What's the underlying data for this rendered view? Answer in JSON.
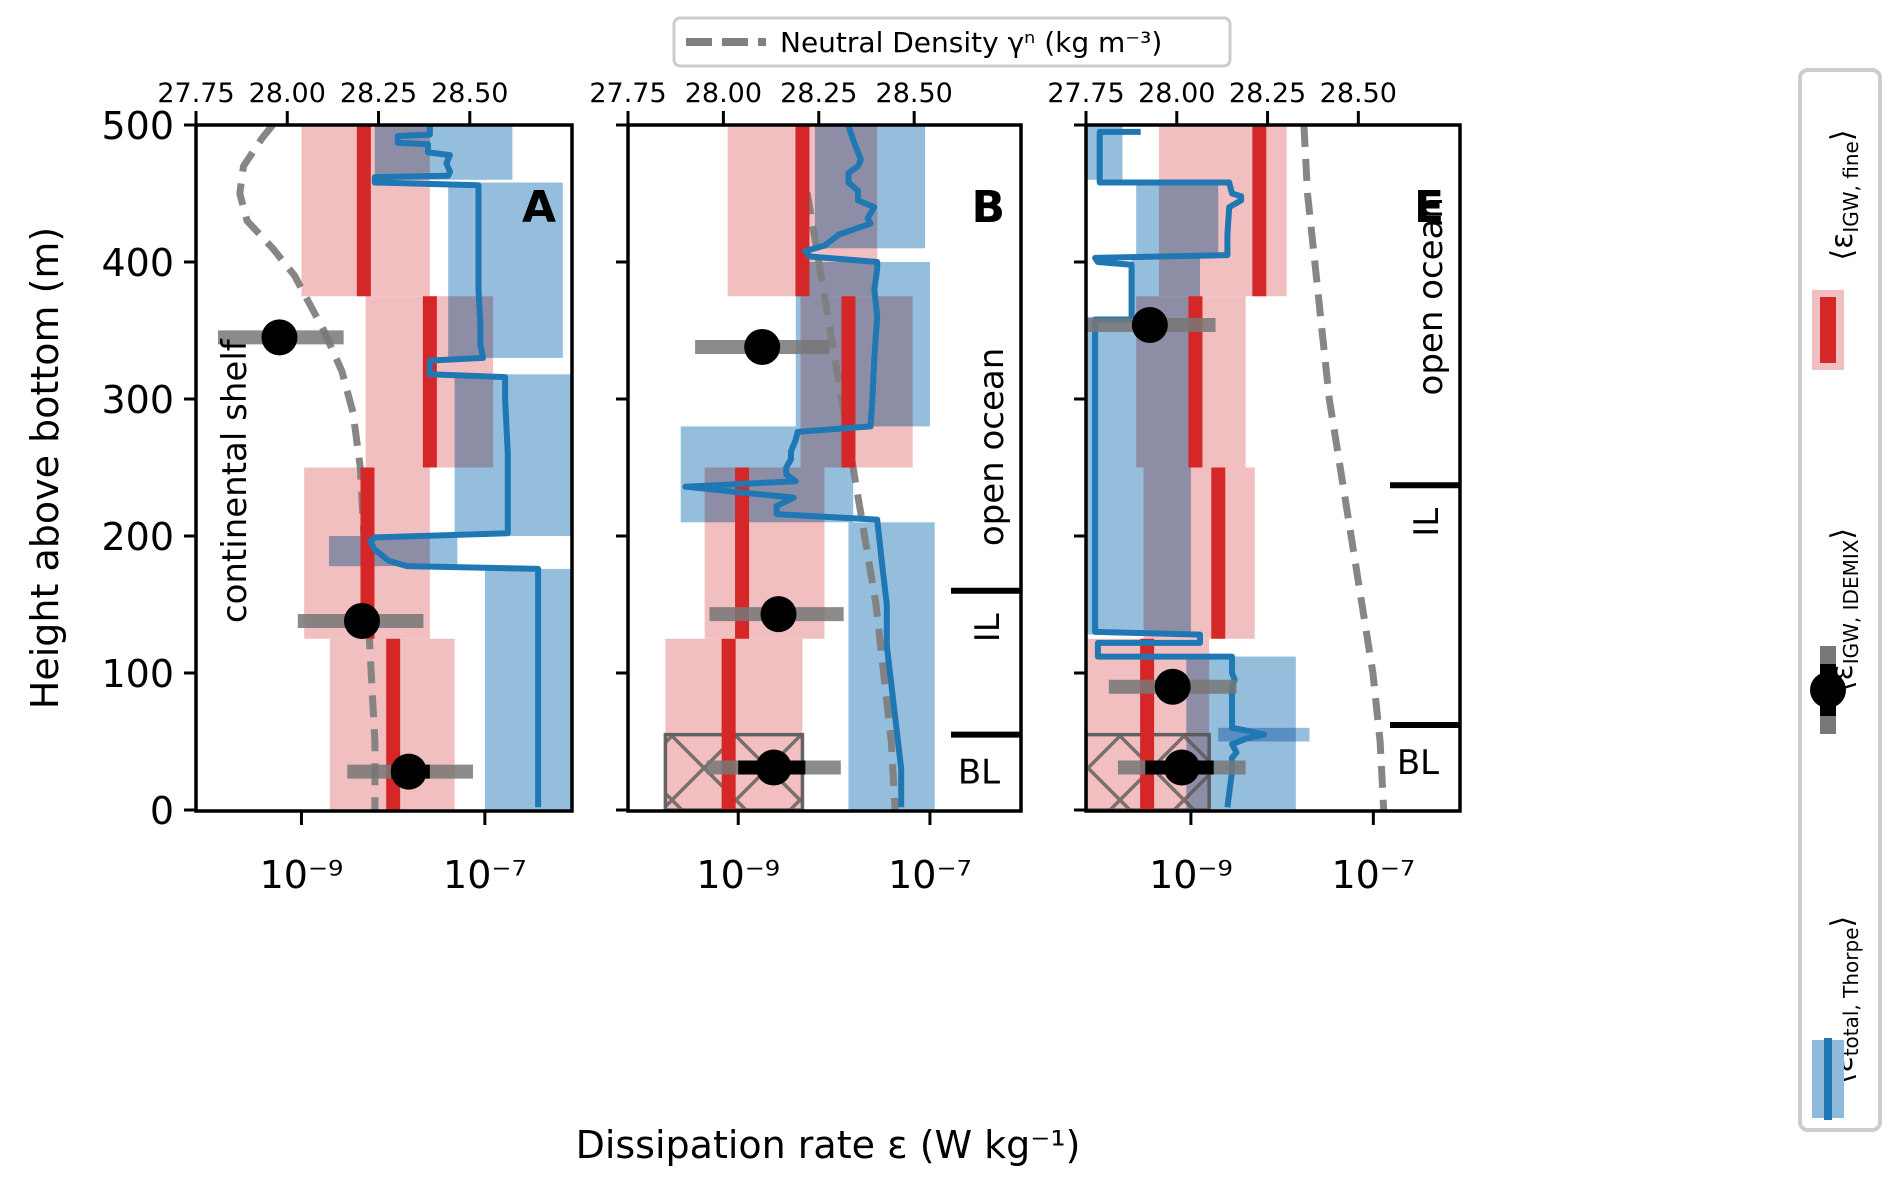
{
  "chart_data": {
    "type": "line",
    "title": "",
    "xlabel": "Dissipation rate ε (W kg⁻¹)",
    "ylabel": "Height above bottom (m)",
    "top_xlabel": "Neutral Density γⁿ (kg m⁻³)",
    "x_scale": "log",
    "xlim_log10": [
      -10.15,
      -6.05
    ],
    "ylim": [
      0,
      500
    ],
    "yticks": [
      0,
      100,
      200,
      300,
      400,
      500
    ],
    "ytick_labels": [
      "0",
      "100",
      "200",
      "300",
      "400",
      "500"
    ],
    "xticks_log10": [
      -9,
      -7
    ],
    "xtick_labels": [
      "10⁻⁹",
      "10⁻⁷"
    ],
    "top_xlim": [
      27.75,
      28.78
    ],
    "top_xticks": [
      27.75,
      28.0,
      28.25,
      28.5
    ],
    "top_xtick_labels": [
      "27.75",
      "28.00",
      "28.25",
      "28.50"
    ],
    "grid": false,
    "legend": {
      "top": {
        "label": "Neutral Density γⁿ (kg m⁻³)",
        "placement": "top-center"
      },
      "right": {
        "placement": "right",
        "entries": [
          {
            "label": "⟨εIGW, fine⟩",
            "main": "⟨ε",
            "sub": "IGW, fine",
            "close": "⟩",
            "kind": "red-bar"
          },
          {
            "label": "⟨εIGW, IDEMIX⟩",
            "main": "⟨ε",
            "sub": "IGW, IDEMIX",
            "close": "⟩",
            "kind": "black-dot"
          },
          {
            "label": "⟨εtotal, Thorpe⟩",
            "main": "⟨ε",
            "sub": "total, Thorpe",
            "close": "⟩",
            "kind": "blue-line"
          }
        ]
      }
    },
    "colors": {
      "fine_bar": "#d62728",
      "fine_shade": "#f2bfc0",
      "overlap_shade": "#a58ca0",
      "thorpe_line": "#1f77b4",
      "thorpe_shade": "#8fbbdb",
      "idemix_dot": "#000000",
      "idemix_err": "#777777",
      "density": "#808080"
    },
    "panels": [
      {
        "letter": "A",
        "region_label": "continental shelf",
        "layers": [],
        "fine_segments": [
          {
            "z": [
              375,
              500
            ],
            "value": -8.32,
            "lo": -9.0,
            "hi": -7.6
          },
          {
            "z": [
              250,
              375
            ],
            "value": -7.6,
            "lo": -8.3,
            "hi": -6.91
          },
          {
            "z": [
              125,
              250
            ],
            "value": -8.28,
            "lo": -8.97,
            "hi": -7.6
          },
          {
            "z": [
              0,
              125
            ],
            "value": -8.0,
            "lo": -8.69,
            "hi": -7.33
          }
        ],
        "idemix": [
          {
            "z": 345,
            "value": -9.24,
            "lo": -9.91,
            "hi": -8.54,
            "ilo": -9.4,
            "ihi": -9.1
          },
          {
            "z": 138,
            "value": -8.34,
            "lo": -9.04,
            "hi": -7.67,
            "ilo": -8.4,
            "ihi": -8.28
          },
          {
            "z": 28,
            "value": -7.83,
            "lo": -8.5,
            "hi": -7.13,
            "ilo": -8.02,
            "ihi": -7.6
          }
        ],
        "thorpe": [
          [
            500,
            -7.6
          ],
          [
            493,
            -7.6
          ],
          [
            492,
            -7.95
          ],
          [
            487,
            -7.95
          ],
          [
            486,
            -7.62
          ],
          [
            480,
            -7.62
          ],
          [
            478,
            -7.38
          ],
          [
            472,
            -7.42
          ],
          [
            466,
            -7.38
          ],
          [
            463,
            -7.4
          ],
          [
            462,
            -8.2
          ],
          [
            458,
            -8.2
          ],
          [
            456,
            -7.07
          ],
          [
            450,
            -7.07
          ],
          [
            420,
            -7.07
          ],
          [
            380,
            -7.07
          ],
          [
            355,
            -7.05
          ],
          [
            345,
            -7.05
          ],
          [
            340,
            -7.05
          ],
          [
            330,
            -7.02
          ],
          [
            328,
            -7.6
          ],
          [
            318,
            -7.6
          ],
          [
            316,
            -6.78
          ],
          [
            300,
            -6.78
          ],
          [
            260,
            -6.75
          ],
          [
            220,
            -6.75
          ],
          [
            202,
            -6.75
          ],
          [
            199,
            -8.2
          ],
          [
            196,
            -8.25
          ],
          [
            190,
            -8.2
          ],
          [
            182,
            -8.05
          ],
          [
            178,
            -7.85
          ],
          [
            176,
            -6.42
          ],
          [
            150,
            -6.42
          ],
          [
            100,
            -6.42
          ],
          [
            50,
            -6.42
          ],
          [
            2,
            -6.42
          ]
        ],
        "thorpe_shade": [
          {
            "z": [
              460,
              500
            ],
            "lo": -8.2,
            "hi": -6.7
          },
          {
            "z": [
              330,
              458
            ],
            "lo": -7.4,
            "hi": -6.15
          },
          {
            "z": [
              200,
              318
            ],
            "lo": -7.33,
            "hi": -6.05
          },
          {
            "z": [
              178,
              200
            ],
            "lo": -8.7,
            "hi": -7.3
          },
          {
            "z": [
              0,
              176
            ],
            "lo": -7.0,
            "hi": -6.05
          }
        ],
        "density": [
          [
            500,
            27.96
          ],
          [
            490,
            27.93
          ],
          [
            470,
            27.88
          ],
          [
            450,
            27.87
          ],
          [
            430,
            27.89
          ],
          [
            410,
            27.96
          ],
          [
            390,
            28.02
          ],
          [
            370,
            28.06
          ],
          [
            350,
            28.1
          ],
          [
            320,
            28.15
          ],
          [
            290,
            28.18
          ],
          [
            250,
            28.2
          ],
          [
            200,
            28.21
          ],
          [
            150,
            28.22
          ],
          [
            100,
            28.23
          ],
          [
            50,
            28.24
          ],
          [
            0,
            28.24
          ]
        ]
      },
      {
        "letter": "B",
        "region_label": "open ocean",
        "layers": [
          {
            "label": "open ocean",
            "z": [
              160,
              500
            ]
          },
          {
            "label": "IL",
            "z": [
              55,
              160
            ]
          },
          {
            "label": "BL",
            "z": [
              0,
              55
            ]
          }
        ],
        "fine_segments": [
          {
            "z": [
              375,
              500
            ],
            "value": -8.33,
            "lo": -9.11,
            "hi": -7.55
          },
          {
            "z": [
              250,
              375
            ],
            "value": -7.85,
            "lo": -8.35,
            "hi": -7.18
          },
          {
            "z": [
              125,
              250
            ],
            "value": -8.96,
            "lo": -9.35,
            "hi": -8.1
          },
          {
            "z": [
              0,
              125
            ],
            "value": -9.1,
            "lo": -9.76,
            "hi": -8.33
          }
        ],
        "idemix": [
          {
            "z": 338,
            "value": -8.75,
            "lo": -9.45,
            "hi": -8.05,
            "ilo": -8.85,
            "ihi": -8.65
          },
          {
            "z": 143,
            "value": -8.58,
            "lo": -9.3,
            "hi": -7.9,
            "ilo": -8.65,
            "ihi": -8.5
          },
          {
            "z": 31,
            "value": -8.63,
            "lo": -9.33,
            "hi": -7.93,
            "ilo": -9.0,
            "ihi": -8.3
          }
        ],
        "thorpe": [
          [
            500,
            -7.85
          ],
          [
            495,
            -7.83
          ],
          [
            485,
            -7.78
          ],
          [
            475,
            -7.72
          ],
          [
            470,
            -7.75
          ],
          [
            465,
            -7.85
          ],
          [
            458,
            -7.85
          ],
          [
            452,
            -7.75
          ],
          [
            445,
            -7.75
          ],
          [
            440,
            -7.58
          ],
          [
            432,
            -7.65
          ],
          [
            428,
            -7.62
          ],
          [
            420,
            -7.95
          ],
          [
            412,
            -8.1
          ],
          [
            408,
            -8.3
          ],
          [
            404,
            -8.25
          ],
          [
            400,
            -7.55
          ],
          [
            395,
            -7.55
          ],
          [
            380,
            -7.58
          ],
          [
            360,
            -7.55
          ],
          [
            330,
            -7.58
          ],
          [
            300,
            -7.6
          ],
          [
            280,
            -7.62
          ],
          [
            276,
            -8.38
          ],
          [
            270,
            -8.4
          ],
          [
            262,
            -8.45
          ],
          [
            256,
            -8.45
          ],
          [
            250,
            -8.5
          ],
          [
            245,
            -8.5
          ],
          [
            240,
            -8.4
          ],
          [
            236,
            -9.55
          ],
          [
            232,
            -9.0
          ],
          [
            228,
            -8.42
          ],
          [
            222,
            -8.6
          ],
          [
            216,
            -8.6
          ],
          [
            212,
            -7.55
          ],
          [
            180,
            -7.5
          ],
          [
            150,
            -7.45
          ],
          [
            120,
            -7.45
          ],
          [
            90,
            -7.4
          ],
          [
            60,
            -7.35
          ],
          [
            30,
            -7.3
          ],
          [
            2,
            -7.3
          ]
        ],
        "thorpe_shade": [
          {
            "z": [
              410,
              500
            ],
            "lo": -8.2,
            "hi": -7.05
          },
          {
            "z": [
              280,
              400
            ],
            "lo": -8.4,
            "hi": -7.0
          },
          {
            "z": [
              210,
              280
            ],
            "lo": -9.6,
            "hi": -7.8
          },
          {
            "z": [
              0,
              210
            ],
            "lo": -7.85,
            "hi": -6.95
          }
        ],
        "density": [
          [
            500,
            28.2
          ],
          [
            450,
            28.22
          ],
          [
            400,
            28.25
          ],
          [
            350,
            28.28
          ],
          [
            300,
            28.31
          ],
          [
            250,
            28.34
          ],
          [
            200,
            28.37
          ],
          [
            150,
            28.4
          ],
          [
            100,
            28.42
          ],
          [
            50,
            28.44
          ],
          [
            0,
            28.45
          ]
        ]
      },
      {
        "letter": "E",
        "region_label": "open ocean",
        "layers": [
          {
            "label": "open ocean",
            "z": [
              237,
              500
            ]
          },
          {
            "label": "IL",
            "z": [
              62,
              237
            ]
          },
          {
            "label": "BL",
            "z": [
              0,
              62
            ]
          }
        ],
        "fine_segments": [
          {
            "z": [
              375,
              500
            ],
            "value": -8.25,
            "lo": -9.35,
            "hi": -7.95
          },
          {
            "z": [
              250,
              375
            ],
            "value": -8.95,
            "lo": -9.6,
            "hi": -8.4
          },
          {
            "z": [
              125,
              250
            ],
            "value": -8.7,
            "lo": -9.52,
            "hi": -8.3
          },
          {
            "z": [
              0,
              125
            ],
            "value": -9.48,
            "lo": -10.15,
            "hi": -8.8
          }
        ],
        "idemix": [
          {
            "z": 354,
            "value": -9.45,
            "lo": -10.15,
            "hi": -8.73,
            "ilo": -9.55,
            "ihi": -9.35
          },
          {
            "z": 90,
            "value": -9.2,
            "lo": -9.9,
            "hi": -8.5,
            "ilo": -9.3,
            "ihi": -9.1
          },
          {
            "z": 31,
            "value": -9.1,
            "lo": -9.8,
            "hi": -8.4,
            "ilo": -9.5,
            "ihi": -8.75
          }
        ],
        "thorpe": [
          [
            495,
            -9.55
          ],
          [
            495,
            -10.0
          ],
          [
            458,
            -10.0
          ],
          [
            458,
            -8.58
          ],
          [
            450,
            -8.55
          ],
          [
            448,
            -8.45
          ],
          [
            445,
            -8.45
          ],
          [
            440,
            -8.58
          ],
          [
            420,
            -8.6
          ],
          [
            405,
            -8.6
          ],
          [
            403,
            -10.05
          ],
          [
            400,
            -10.02
          ],
          [
            398,
            -9.65
          ],
          [
            370,
            -9.65
          ],
          [
            358,
            -9.65
          ],
          [
            358,
            -10.05
          ],
          [
            300,
            -10.05
          ],
          [
            200,
            -10.05
          ],
          [
            130,
            -10.05
          ],
          [
            128,
            -8.9
          ],
          [
            122,
            -8.9
          ],
          [
            122,
            -10.02
          ],
          [
            112,
            -10.02
          ],
          [
            112,
            -8.55
          ],
          [
            100,
            -8.55
          ],
          [
            95,
            -8.52
          ],
          [
            90,
            -8.55
          ],
          [
            60,
            -8.55
          ],
          [
            58,
            -8.4
          ],
          [
            55,
            -8.2
          ],
          [
            52,
            -8.4
          ],
          [
            48,
            -8.55
          ],
          [
            42,
            -8.5
          ],
          [
            38,
            -8.55
          ],
          [
            30,
            -8.55
          ],
          [
            28,
            -8.55
          ],
          [
            2,
            -8.6
          ]
        ],
        "thorpe_shade": [
          {
            "z": [
              460,
              500
            ],
            "lo": -10.15,
            "hi": -9.75
          },
          {
            "z": [
              404,
              458
            ],
            "lo": -9.6,
            "hi": -8.7
          },
          {
            "z": [
              360,
              404
            ],
            "lo": -9.65,
            "hi": -8.9
          },
          {
            "z": [
              128,
              360
            ],
            "lo": -10.15,
            "hi": -9.0
          },
          {
            "z": [
              0,
              112
            ],
            "lo": -9.05,
            "hi": -7.85
          },
          {
            "z": [
              50,
              60
            ],
            "lo": -8.7,
            "hi": -7.7
          }
        ],
        "density": [
          [
            500,
            28.35
          ],
          [
            450,
            28.36
          ],
          [
            400,
            28.38
          ],
          [
            350,
            28.4
          ],
          [
            300,
            28.42
          ],
          [
            250,
            28.45
          ],
          [
            200,
            28.48
          ],
          [
            150,
            28.51
          ],
          [
            100,
            28.54
          ],
          [
            50,
            28.56
          ],
          [
            0,
            28.57
          ]
        ]
      }
    ]
  }
}
